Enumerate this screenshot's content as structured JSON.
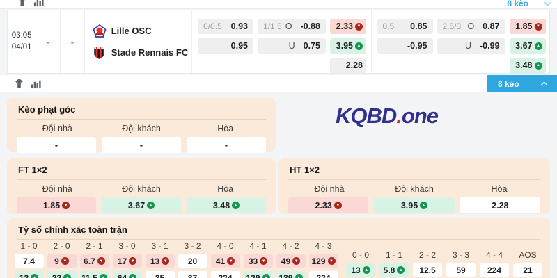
{
  "header_bar": {
    "odds_count_label": "8 kèo"
  },
  "toolbar": {
    "odds_count_label": "8 kèo"
  },
  "match": {
    "time": "03:05",
    "date": "04/01",
    "score_home": "-",
    "score_away": "-",
    "home": "Lille OSC",
    "away": "Stade Rennais FC",
    "odds_halves": [
      {
        "hdp": {
          "line": "0/0.5",
          "home": "0.93",
          "away": "0.95"
        },
        "ou": {
          "line": "1/1.5",
          "over_label": "O",
          "over": "-0.88",
          "under_label": "U",
          "under": "0.75"
        },
        "x12": [
          {
            "value": "2.33",
            "trend": "down",
            "bg": "red"
          },
          {
            "value": "3.95",
            "trend": "up",
            "bg": "green"
          },
          {
            "value": "2.28",
            "trend": null,
            "bg": "gray"
          }
        ]
      },
      {
        "hdp": {
          "line": "0.5",
          "home": "0.85",
          "away": "-0.95"
        },
        "ou": {
          "line": "2.5/3",
          "over_label": "O",
          "over": "0.87",
          "under_label": "U",
          "under": "-0.99"
        },
        "x12": [
          {
            "value": "1.85",
            "trend": "down",
            "bg": "red"
          },
          {
            "value": "3.67",
            "trend": "up",
            "bg": "green"
          },
          {
            "value": "3.48",
            "trend": "up",
            "bg": "green"
          }
        ]
      }
    ]
  },
  "corner_panel": {
    "title": "Kèo phạt góc",
    "headers": [
      "Đội nhà",
      "Đội khách",
      "Hòa"
    ],
    "values": [
      {
        "value": "-",
        "trend": null,
        "bg": "white"
      },
      {
        "value": "-",
        "trend": null,
        "bg": "white"
      },
      {
        "value": "-",
        "trend": null,
        "bg": "white"
      }
    ]
  },
  "watermark": {
    "brand": "KQBD",
    "dot": ".",
    "suffix": "one"
  },
  "ft_panel": {
    "title": "FT 1×2",
    "headers": [
      "Đội nhà",
      "Đội khách",
      "Hòa"
    ],
    "values": [
      {
        "value": "1.85",
        "trend": "down",
        "bg": "red"
      },
      {
        "value": "3.67",
        "trend": "up",
        "bg": "green"
      },
      {
        "value": "3.48",
        "trend": "up",
        "bg": "green"
      }
    ]
  },
  "ht_panel": {
    "title": "HT 1×2",
    "headers": [
      "Đội nhà",
      "Đội khách",
      "Hòa"
    ],
    "values": [
      {
        "value": "2.33",
        "trend": "down",
        "bg": "red"
      },
      {
        "value": "3.95",
        "trend": "up",
        "bg": "green"
      },
      {
        "value": "2.28",
        "trend": null,
        "bg": "white"
      }
    ]
  },
  "score_panel": {
    "title": "Tỷ số chính xác toàn trận",
    "score_columns": [
      {
        "score": "1 - 0",
        "top": {
          "value": "7.4",
          "trend": null,
          "bg": "white"
        },
        "bottom": {
          "value": "12",
          "trend": "up",
          "bg": "green"
        }
      },
      {
        "score": "2 - 0",
        "top": {
          "value": "9",
          "trend": "down",
          "bg": "red"
        },
        "bottom": {
          "value": "22",
          "trend": "up",
          "bg": "green"
        }
      },
      {
        "score": "2 - 1",
        "top": {
          "value": "6.7",
          "trend": "down",
          "bg": "red"
        },
        "bottom": {
          "value": "11.5",
          "trend": "up",
          "bg": "green"
        }
      },
      {
        "score": "3 - 0",
        "top": {
          "value": "17",
          "trend": "down",
          "bg": "red"
        },
        "bottom": {
          "value": "64",
          "trend": "up",
          "bg": "green"
        }
      },
      {
        "score": "3 - 1",
        "top": {
          "value": "13",
          "trend": "down",
          "bg": "red"
        },
        "bottom": {
          "value": "35",
          "trend": null,
          "bg": "white"
        }
      },
      {
        "score": "3 - 2",
        "top": {
          "value": "20",
          "trend": null,
          "bg": "white"
        },
        "bottom": {
          "value": "37",
          "trend": null,
          "bg": "white"
        }
      },
      {
        "score": "4 - 0",
        "top": {
          "value": "41",
          "trend": "down",
          "bg": "red"
        },
        "bottom": {
          "value": "224",
          "trend": null,
          "bg": "white"
        }
      },
      {
        "score": "4 - 1",
        "top": {
          "value": "33",
          "trend": "down",
          "bg": "red"
        },
        "bottom": {
          "value": "129",
          "trend": "up",
          "bg": "green"
        }
      },
      {
        "score": "4 - 2",
        "top": {
          "value": "49",
          "trend": "down",
          "bg": "red"
        },
        "bottom": {
          "value": "139",
          "trend": "up",
          "bg": "green"
        }
      },
      {
        "score": "4 - 3",
        "top": {
          "value": "129",
          "trend": "down",
          "bg": "red"
        },
        "bottom": {
          "value": "224",
          "trend": null,
          "bg": "white"
        }
      }
    ],
    "draw_columns": [
      {
        "score": "0 - 0",
        "cell": {
          "value": "13",
          "trend": "up",
          "bg": "green"
        }
      },
      {
        "score": "1 - 1",
        "cell": {
          "value": "5.8",
          "trend": "up",
          "bg": "green"
        }
      },
      {
        "score": "2 - 2",
        "cell": {
          "value": "12.5",
          "trend": null,
          "bg": "white"
        }
      },
      {
        "score": "3 - 3",
        "cell": {
          "value": "59",
          "trend": null,
          "bg": "white"
        }
      },
      {
        "score": "4 - 4",
        "cell": {
          "value": "224",
          "trend": null,
          "bg": "white"
        }
      },
      {
        "score": "AOS",
        "cell": {
          "value": "21",
          "trend": null,
          "bg": "white"
        }
      }
    ]
  },
  "colors": {
    "accent_blue": "#2ea7e0",
    "link_blue": "#3ea7e3",
    "panel_peach": "#fbe9da",
    "pill_red": "#fad8d5",
    "pill_green": "#d8f3e5",
    "pill_gray": "#efefef",
    "trend_down": "#a8291b",
    "trend_up": "#169552",
    "watermark_blue": "#31318d",
    "watermark_red": "#e03131",
    "dash_red": "#e36d6d"
  }
}
